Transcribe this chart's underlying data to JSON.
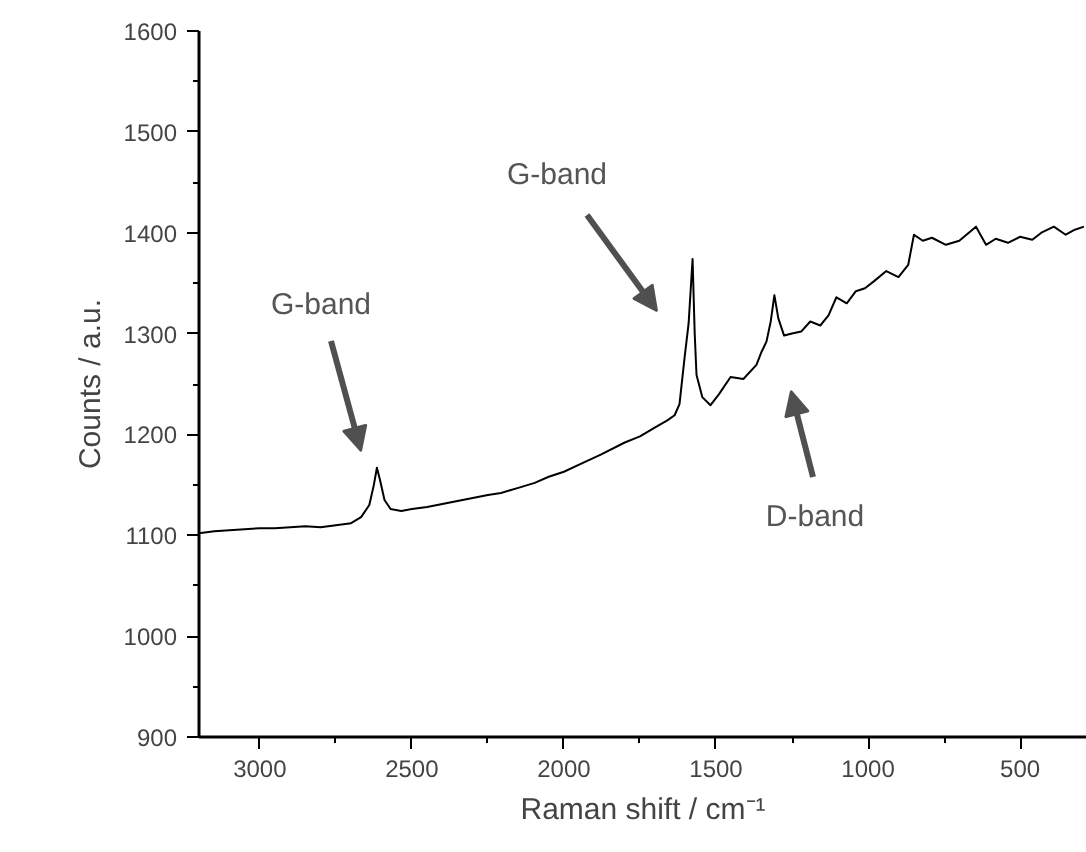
{
  "chart_data": {
    "type": "line",
    "xlabel": "Raman shift / cm⁻¹",
    "ylabel": "Counts / a.u.",
    "xlim": [
      3200,
      280
    ],
    "ylim": [
      900,
      1600
    ],
    "xticks": [
      3000,
      2500,
      2000,
      1500,
      1000,
      500
    ],
    "yticks": [
      900,
      1000,
      1100,
      1200,
      1300,
      1400,
      1500,
      1600
    ],
    "grid": false,
    "marker": "none",
    "line_style": "solid",
    "annotations": [
      "G-band",
      "G-band",
      "D-band"
    ],
    "series": [
      {
        "color": "#000000",
        "x": [
          3200,
          3150,
          3100,
          3050,
          3000,
          2950,
          2900,
          2850,
          2800,
          2750,
          2700,
          2667,
          2640,
          2625,
          2615,
          2605,
          2590,
          2570,
          2535,
          2500,
          2450,
          2400,
          2350,
          2300,
          2250,
          2207,
          2150,
          2096,
          2050,
          2000,
          1950,
          1879,
          1800,
          1750,
          1700,
          1660,
          1636,
          1620,
          1603,
          1590,
          1577,
          1570,
          1564,
          1545,
          1518,
          1490,
          1452,
          1410,
          1367,
          1350,
          1334,
          1320,
          1308,
          1295,
          1276,
          1250,
          1220,
          1190,
          1157,
          1130,
          1104,
          1070,
          1040,
          1010,
          980,
          940,
          900,
          868,
          849,
          820,
          790,
          744,
          700,
          645,
          612,
          580,
          540,
          500,
          460,
          430,
          389,
          350,
          320,
          290
        ],
        "values": [
          1102,
          1104,
          1105,
          1106,
          1107,
          1107,
          1108,
          1109,
          1108,
          1110,
          1112,
          1118,
          1130,
          1150,
          1167,
          1155,
          1135,
          1126,
          1124,
          1126,
          1128,
          1131,
          1134,
          1137,
          1140,
          1142,
          1147,
          1152,
          1158,
          1163,
          1170,
          1180,
          1192,
          1198,
          1207,
          1214,
          1219,
          1230,
          1277,
          1310,
          1374,
          1300,
          1259,
          1237,
          1229,
          1240,
          1257,
          1255,
          1269,
          1282,
          1292,
          1312,
          1338,
          1315,
          1298,
          1300,
          1302,
          1312,
          1308,
          1318,
          1336,
          1330,
          1342,
          1345,
          1352,
          1362,
          1356,
          1368,
          1398,
          1392,
          1395,
          1388,
          1392,
          1406,
          1388,
          1394,
          1390,
          1396,
          1393,
          1400,
          1406,
          1398,
          1403,
          1406
        ]
      }
    ]
  }
}
